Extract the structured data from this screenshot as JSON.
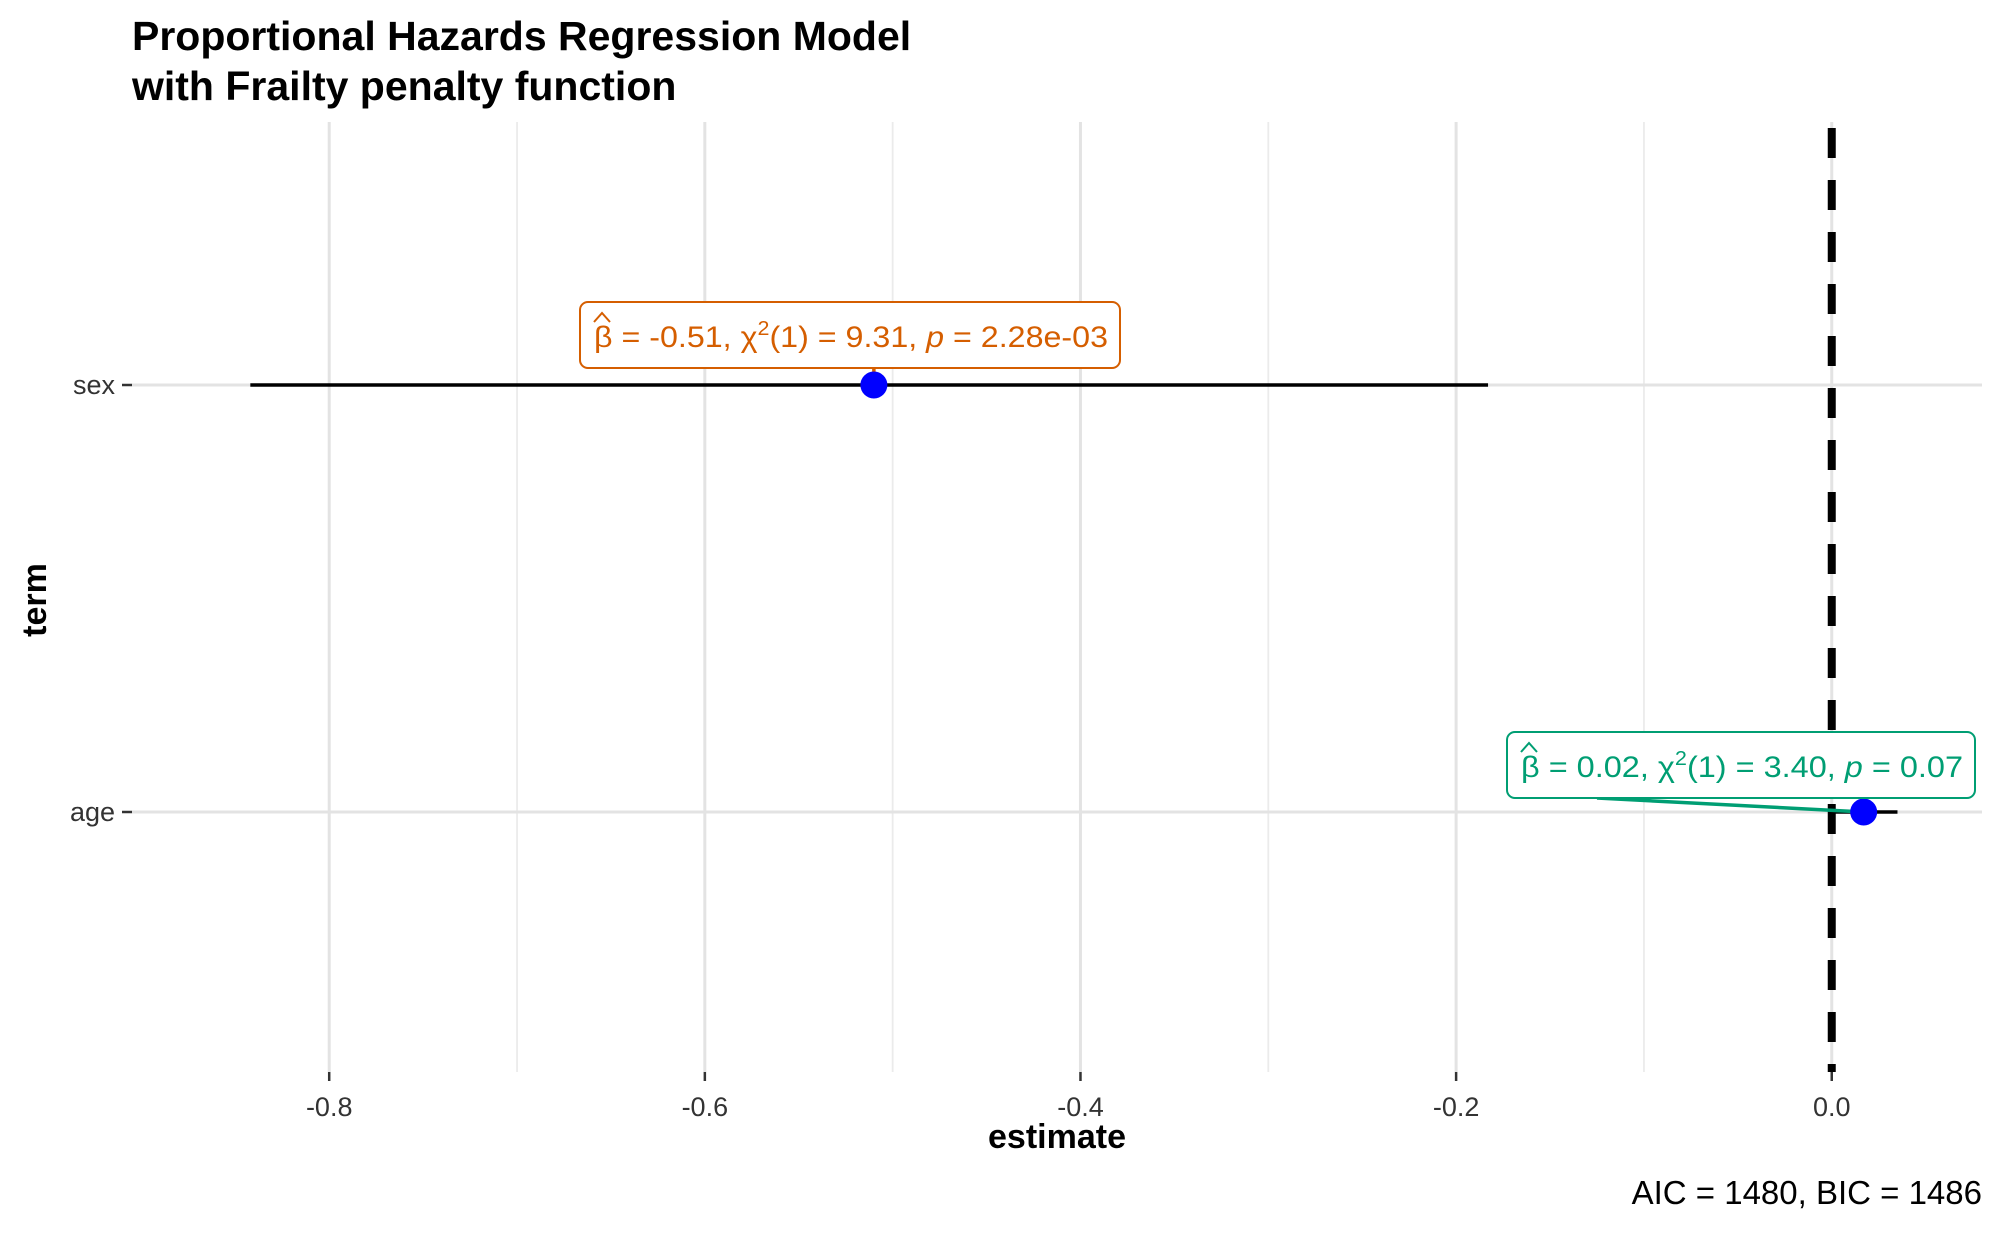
{
  "chart_data": {
    "type": "scatter",
    "title": "Proportional Hazards Regression Model",
    "subtitle": "with Frailty penalty function",
    "xlabel": "estimate",
    "ylabel": "term",
    "caption": "AIC = 1480, BIC = 1486",
    "xlim": [
      -0.905,
      0.08
    ],
    "x_ticks": [
      -0.8,
      -0.6,
      -0.4,
      -0.2,
      0.0
    ],
    "x_tick_labels": [
      "-0.8",
      "-0.6",
      "-0.4",
      "-0.2",
      "0.0"
    ],
    "categories": [
      "sex",
      "age"
    ],
    "reference_line": {
      "x": 0,
      "style": "dashed"
    },
    "grid": true,
    "legend": "none",
    "point_color": "#0000FF",
    "points": [
      {
        "term": "sex",
        "estimate": -0.51,
        "conf_low": -0.842,
        "conf_high": -0.183,
        "label_color": "#D55E00",
        "label": {
          "beta": "-0.51",
          "df": "1",
          "chisq": "9.31",
          "p": "2.28e-03"
        }
      },
      {
        "term": "age",
        "estimate": 0.017,
        "conf_low": -0.001,
        "conf_high": 0.035,
        "label_color": "#009E73",
        "label": {
          "beta": "0.02",
          "df": "1",
          "chisq": "3.40",
          "p": "0.07"
        }
      }
    ]
  }
}
